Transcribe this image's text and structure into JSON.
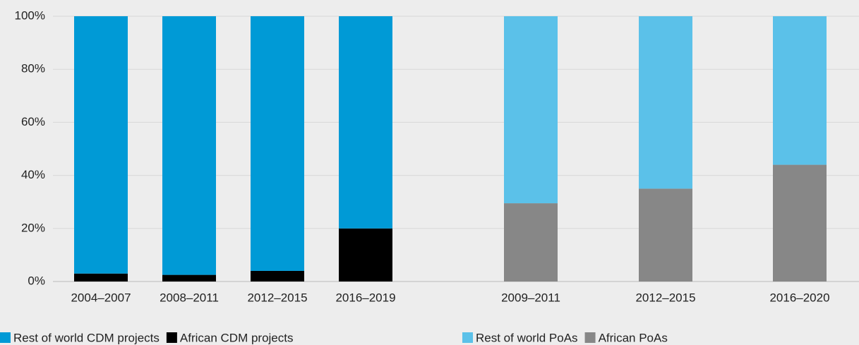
{
  "chart_data": {
    "type": "bar",
    "stacked": true,
    "grid": true,
    "ylim": [
      0,
      100
    ],
    "yticks": [
      {
        "value": 0,
        "label": "0%"
      },
      {
        "value": 20,
        "label": "20%"
      },
      {
        "value": 40,
        "label": "40%"
      },
      {
        "value": 60,
        "label": "60%"
      },
      {
        "value": 80,
        "label": "80%"
      },
      {
        "value": 100,
        "label": "100%"
      }
    ],
    "groups": [
      {
        "categories": [
          "2004–2007",
          "2008–2011",
          "2012–2015",
          "2016–2019"
        ],
        "series": [
          {
            "name": "Rest of world CDM projects",
            "color": "#009ad6",
            "values": [
              97,
              97.5,
              96,
              80
            ]
          },
          {
            "name": "African CDM projects",
            "color": "#000000",
            "values": [
              3,
              2.5,
              4,
              20
            ]
          }
        ]
      },
      {
        "categories": [
          "2009–2011",
          "2012–2015",
          "2016–2020"
        ],
        "series": [
          {
            "name": "Rest of world PoAs",
            "color": "#5bc1e9",
            "values": [
              70.5,
              65,
              56
            ]
          },
          {
            "name": "African PoAs",
            "color": "#878787",
            "values": [
              29.5,
              35,
              44
            ]
          }
        ]
      }
    ]
  }
}
